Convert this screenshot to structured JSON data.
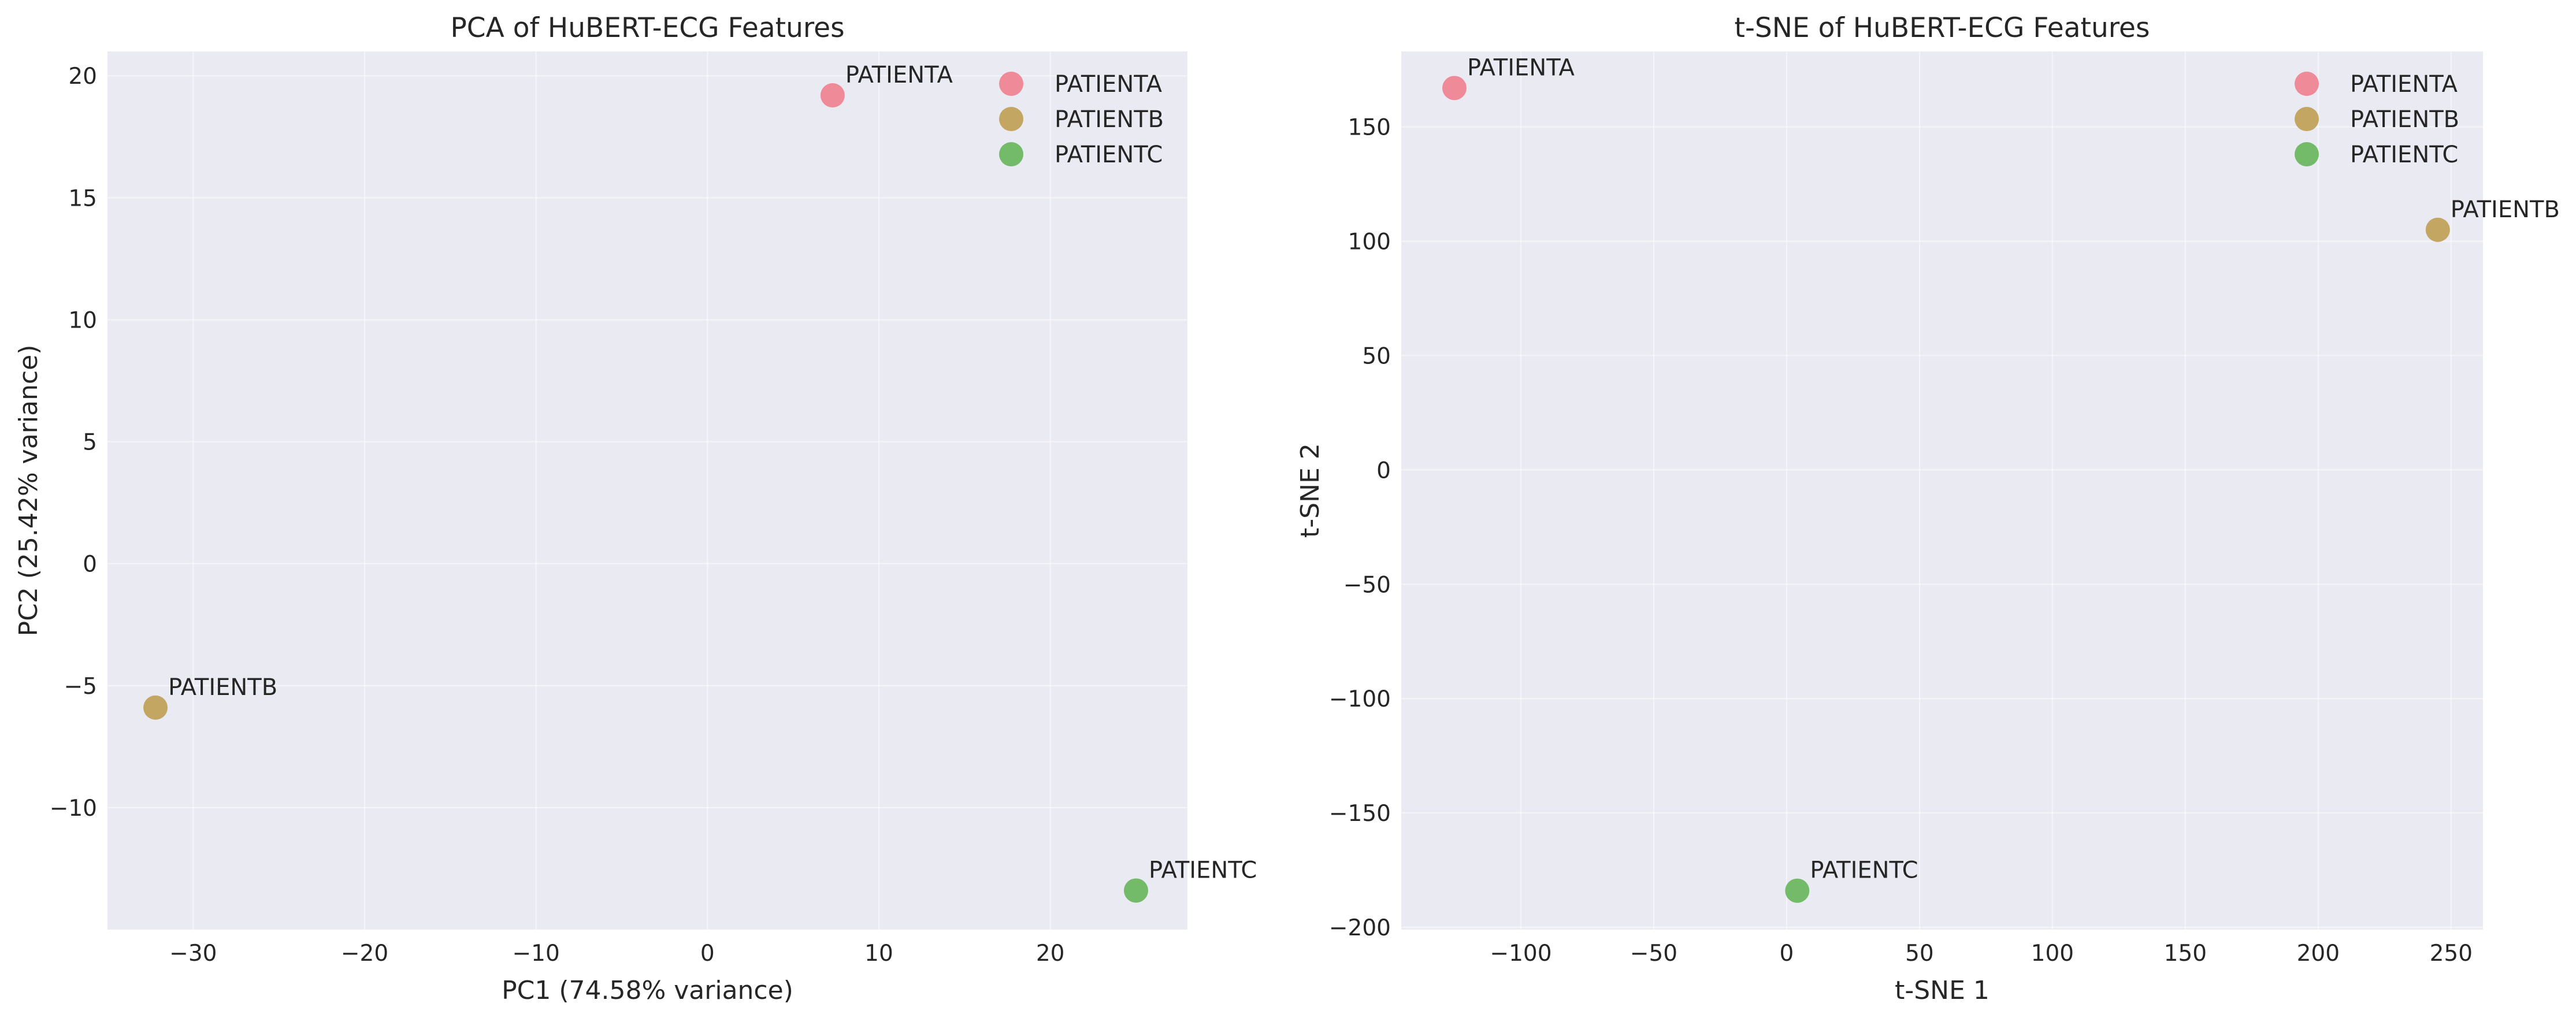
{
  "chart_data": [
    {
      "type": "scatter",
      "title": "PCA of HuBERT-ECG Features",
      "xlabel": "PC1 (74.58% variance)",
      "ylabel": "PC2 (25.42% variance)",
      "xlim": [
        -35,
        28
      ],
      "ylim": [
        -15,
        21
      ],
      "xticks": [
        -30,
        -20,
        -10,
        0,
        10,
        20
      ],
      "yticks": [
        -10,
        -5,
        0,
        5,
        10,
        15,
        20
      ],
      "xtick_labels": [
        "−30",
        "−20",
        "−10",
        "0",
        "10",
        "20"
      ],
      "ytick_labels": [
        "−10",
        "−5",
        "0",
        "5",
        "10",
        "15",
        "20"
      ],
      "grid": true,
      "legend": "top-right",
      "series": [
        {
          "name": "PATIENTA",
          "color": "#f07f8e",
          "points": [
            {
              "x": 7.3,
              "y": 19.2
            }
          ]
        },
        {
          "name": "PATIENTB",
          "color": "#bf9e52",
          "points": [
            {
              "x": -32.2,
              "y": -5.9
            }
          ]
        },
        {
          "name": "PATIENTC",
          "color": "#67b65a",
          "points": [
            {
              "x": 25.0,
              "y": -13.4
            }
          ]
        }
      ],
      "annotations": [
        "PATIENTA",
        "PATIENTB",
        "PATIENTC"
      ]
    },
    {
      "type": "scatter",
      "title": "t-SNE of HuBERT-ECG Features",
      "xlabel": "t-SNE 1",
      "ylabel": "t-SNE 2",
      "xlim": [
        -145,
        262
      ],
      "ylim": [
        -201,
        183
      ],
      "xticks": [
        -100,
        -50,
        0,
        50,
        100,
        150,
        200,
        250
      ],
      "yticks": [
        -200,
        -150,
        -100,
        -50,
        0,
        50,
        100,
        150
      ],
      "xtick_labels": [
        "−100",
        "−50",
        "0",
        "50",
        "100",
        "150",
        "200",
        "250"
      ],
      "ytick_labels": [
        "−200",
        "−150",
        "−100",
        "−50",
        "0",
        "50",
        "100",
        "150"
      ],
      "grid": true,
      "legend": "top-right",
      "series": [
        {
          "name": "PATIENTA",
          "color": "#f07f8e",
          "points": [
            {
              "x": -125,
              "y": 167
            }
          ]
        },
        {
          "name": "PATIENTB",
          "color": "#bf9e52",
          "points": [
            {
              "x": 245,
              "y": 105
            }
          ]
        },
        {
          "name": "PATIENTC",
          "color": "#67b65a",
          "points": [
            {
              "x": 4,
              "y": -184
            }
          ]
        }
      ],
      "annotations": [
        "PATIENTA",
        "PATIENTB",
        "PATIENTC"
      ]
    }
  ]
}
